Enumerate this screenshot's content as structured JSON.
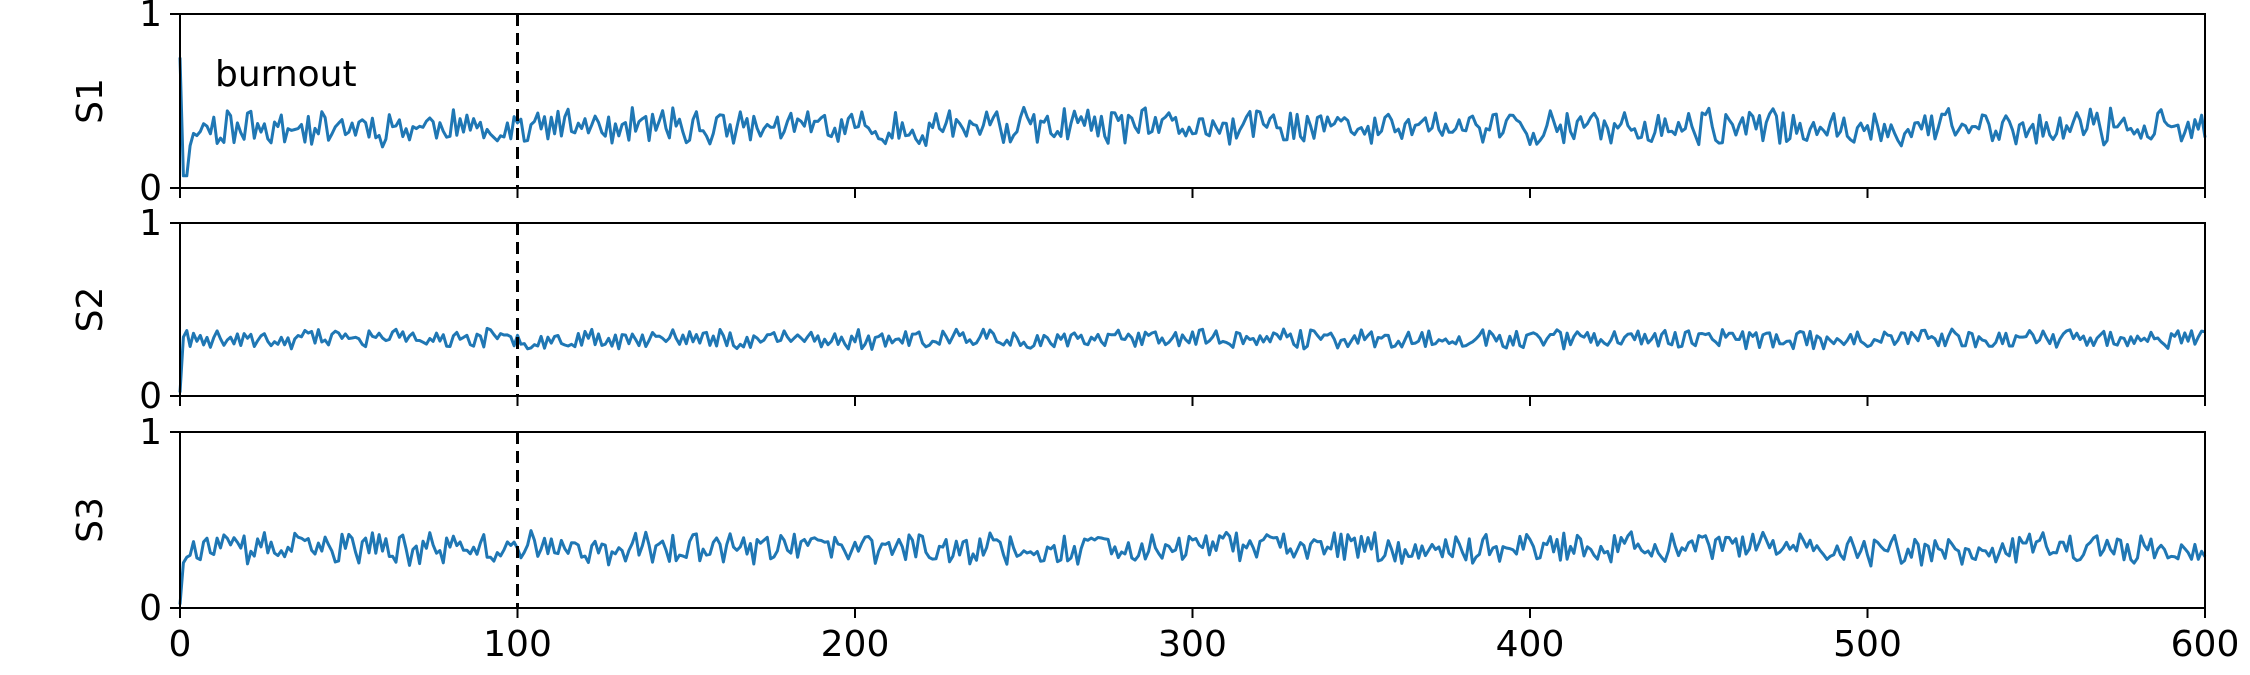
{
  "chart_data": {
    "type": "line",
    "xlim": [
      0,
      600
    ],
    "x_ticks": [
      "0",
      "100",
      "200",
      "300",
      "400",
      "500",
      "600"
    ],
    "ylim": [
      0,
      1
    ],
    "y_ticks": [
      "0",
      "1"
    ],
    "grid": false,
    "vline_x": 100,
    "annotation": "burnout",
    "panels": [
      {
        "ylabel": "S1",
        "start": 0.75,
        "mean": 0.35,
        "amp": 0.09,
        "seed": 11
      },
      {
        "ylabel": "S2",
        "start": 0.02,
        "mean": 0.33,
        "amp": 0.05,
        "seed": 23
      },
      {
        "ylabel": "S3",
        "start": 0.02,
        "mean": 0.34,
        "amp": 0.08,
        "seed": 37
      }
    ],
    "colors": {
      "series": "#1f77b4",
      "vline": "#000000"
    }
  }
}
